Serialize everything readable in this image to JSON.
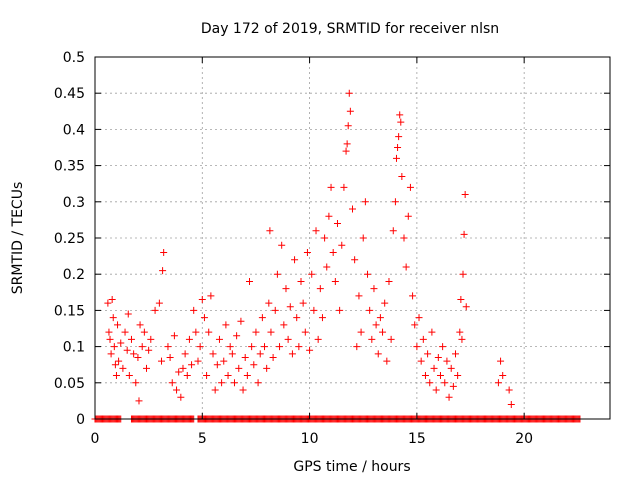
{
  "chart_data": {
    "type": "scatter",
    "title": "Day 172 of 2019, SRMTID for receiver nlsn",
    "xlabel": "GPS time / hours",
    "ylabel": "SRMTID / TECUs",
    "xlim": [
      0,
      24
    ],
    "ylim": [
      0,
      0.5
    ],
    "xticks": [
      "0",
      "5",
      "10",
      "15",
      "20"
    ],
    "xtick_values": [
      0,
      5,
      10,
      15,
      20
    ],
    "yticks": [
      "0",
      "0.05",
      "0.1",
      "0.15",
      "0.2",
      "0.25",
      "0.3",
      "0.35",
      "0.4",
      "0.45",
      "0.5"
    ],
    "ytick_values": [
      0,
      0.05,
      0.1,
      0.15,
      0.2,
      0.25,
      0.3,
      0.35,
      0.4,
      0.45,
      0.5
    ],
    "grid": true,
    "marker": "+",
    "color": "#ff0000",
    "series": [
      {
        "values": [
          [
            0.6,
            0.16
          ],
          [
            0.65,
            0.12
          ],
          [
            0.7,
            0.11
          ],
          [
            0.75,
            0.09
          ],
          [
            0.8,
            0.165
          ],
          [
            0.85,
            0.14
          ],
          [
            0.9,
            0.1
          ],
          [
            0.95,
            0.075
          ],
          [
            1.0,
            0.06
          ],
          [
            1.05,
            0.13
          ],
          [
            1.1,
            0.08
          ],
          [
            1.2,
            0.105
          ],
          [
            1.3,
            0.07
          ],
          [
            1.4,
            0.12
          ],
          [
            1.5,
            0.095
          ],
          [
            1.55,
            0.145
          ],
          [
            1.6,
            0.06
          ],
          [
            1.7,
            0.11
          ],
          [
            1.8,
            0.09
          ],
          [
            1.9,
            0.05
          ],
          [
            2.0,
            0.085
          ],
          [
            2.05,
            0.025
          ],
          [
            2.1,
            0.13
          ],
          [
            2.2,
            0.1
          ],
          [
            2.3,
            0.12
          ],
          [
            2.4,
            0.07
          ],
          [
            2.5,
            0.095
          ],
          [
            2.6,
            0.11
          ],
          [
            2.8,
            0.15
          ],
          [
            3.0,
            0.16
          ],
          [
            3.1,
            0.08
          ],
          [
            3.15,
            0.205
          ],
          [
            3.2,
            0.23
          ],
          [
            3.4,
            0.1
          ],
          [
            3.5,
            0.085
          ],
          [
            3.6,
            0.05
          ],
          [
            3.7,
            0.115
          ],
          [
            3.8,
            0.04
          ],
          [
            3.9,
            0.065
          ],
          [
            4.0,
            0.03
          ],
          [
            4.1,
            0.07
          ],
          [
            4.2,
            0.09
          ],
          [
            4.3,
            0.06
          ],
          [
            4.4,
            0.11
          ],
          [
            4.5,
            0.075
          ],
          [
            4.6,
            0.15
          ],
          [
            4.7,
            0.12
          ],
          [
            4.8,
            0.08
          ],
          [
            4.9,
            0.1
          ],
          [
            5.0,
            0.165
          ],
          [
            5.1,
            0.14
          ],
          [
            5.2,
            0.06
          ],
          [
            5.3,
            0.12
          ],
          [
            5.4,
            0.17
          ],
          [
            5.5,
            0.09
          ],
          [
            5.6,
            0.04
          ],
          [
            5.7,
            0.075
          ],
          [
            5.8,
            0.11
          ],
          [
            5.9,
            0.05
          ],
          [
            6.0,
            0.08
          ],
          [
            6.1,
            0.13
          ],
          [
            6.2,
            0.06
          ],
          [
            6.3,
            0.1
          ],
          [
            6.4,
            0.09
          ],
          [
            6.5,
            0.05
          ],
          [
            6.6,
            0.115
          ],
          [
            6.7,
            0.07
          ],
          [
            6.8,
            0.135
          ],
          [
            6.9,
            0.04
          ],
          [
            7.0,
            0.085
          ],
          [
            7.1,
            0.06
          ],
          [
            7.2,
            0.19
          ],
          [
            7.3,
            0.1
          ],
          [
            7.4,
            0.075
          ],
          [
            7.5,
            0.12
          ],
          [
            7.6,
            0.05
          ],
          [
            7.7,
            0.09
          ],
          [
            7.8,
            0.14
          ],
          [
            7.9,
            0.1
          ],
          [
            8.0,
            0.07
          ],
          [
            8.1,
            0.16
          ],
          [
            8.15,
            0.26
          ],
          [
            8.2,
            0.12
          ],
          [
            8.3,
            0.085
          ],
          [
            8.4,
            0.15
          ],
          [
            8.5,
            0.2
          ],
          [
            8.6,
            0.1
          ],
          [
            8.7,
            0.24
          ],
          [
            8.8,
            0.13
          ],
          [
            8.9,
            0.18
          ],
          [
            9.0,
            0.11
          ],
          [
            9.1,
            0.155
          ],
          [
            9.2,
            0.09
          ],
          [
            9.3,
            0.22
          ],
          [
            9.4,
            0.14
          ],
          [
            9.5,
            0.1
          ],
          [
            9.6,
            0.19
          ],
          [
            9.7,
            0.16
          ],
          [
            9.8,
            0.12
          ],
          [
            9.9,
            0.23
          ],
          [
            10.0,
            0.095
          ],
          [
            10.1,
            0.2
          ],
          [
            10.2,
            0.15
          ],
          [
            10.3,
            0.26
          ],
          [
            10.4,
            0.11
          ],
          [
            10.5,
            0.18
          ],
          [
            10.6,
            0.14
          ],
          [
            10.7,
            0.25
          ],
          [
            10.8,
            0.21
          ],
          [
            10.9,
            0.28
          ],
          [
            11.0,
            0.32
          ],
          [
            11.1,
            0.23
          ],
          [
            11.2,
            0.19
          ],
          [
            11.3,
            0.27
          ],
          [
            11.4,
            0.15
          ],
          [
            11.5,
            0.24
          ],
          [
            11.6,
            0.32
          ],
          [
            11.7,
            0.37
          ],
          [
            11.75,
            0.38
          ],
          [
            11.8,
            0.405
          ],
          [
            11.85,
            0.45
          ],
          [
            11.9,
            0.425
          ],
          [
            12.0,
            0.29
          ],
          [
            12.1,
            0.22
          ],
          [
            12.2,
            0.1
          ],
          [
            12.3,
            0.17
          ],
          [
            12.4,
            0.12
          ],
          [
            12.5,
            0.25
          ],
          [
            12.6,
            0.3
          ],
          [
            12.7,
            0.2
          ],
          [
            12.8,
            0.15
          ],
          [
            12.9,
            0.11
          ],
          [
            13.0,
            0.18
          ],
          [
            13.1,
            0.13
          ],
          [
            13.2,
            0.09
          ],
          [
            13.3,
            0.14
          ],
          [
            13.4,
            0.12
          ],
          [
            13.5,
            0.16
          ],
          [
            13.6,
            0.08
          ],
          [
            13.7,
            0.19
          ],
          [
            13.8,
            0.11
          ],
          [
            13.9,
            0.26
          ],
          [
            14.0,
            0.3
          ],
          [
            14.05,
            0.36
          ],
          [
            14.1,
            0.375
          ],
          [
            14.15,
            0.39
          ],
          [
            14.2,
            0.42
          ],
          [
            14.25,
            0.41
          ],
          [
            14.3,
            0.335
          ],
          [
            14.4,
            0.25
          ],
          [
            14.5,
            0.21
          ],
          [
            14.6,
            0.28
          ],
          [
            14.7,
            0.32
          ],
          [
            14.8,
            0.17
          ],
          [
            14.9,
            0.13
          ],
          [
            15.0,
            0.1
          ],
          [
            15.1,
            0.14
          ],
          [
            15.2,
            0.08
          ],
          [
            15.3,
            0.11
          ],
          [
            15.4,
            0.06
          ],
          [
            15.5,
            0.09
          ],
          [
            15.6,
            0.05
          ],
          [
            15.7,
            0.12
          ],
          [
            15.8,
            0.07
          ],
          [
            15.9,
            0.04
          ],
          [
            16.0,
            0.085
          ],
          [
            16.1,
            0.06
          ],
          [
            16.2,
            0.1
          ],
          [
            16.3,
            0.05
          ],
          [
            16.4,
            0.08
          ],
          [
            16.5,
            0.03
          ],
          [
            16.6,
            0.07
          ],
          [
            16.7,
            0.045
          ],
          [
            16.8,
            0.09
          ],
          [
            16.9,
            0.06
          ],
          [
            17.0,
            0.12
          ],
          [
            17.05,
            0.165
          ],
          [
            17.1,
            0.11
          ],
          [
            17.15,
            0.2
          ],
          [
            17.2,
            0.255
          ],
          [
            17.25,
            0.31
          ],
          [
            17.3,
            0.155
          ],
          [
            18.8,
            0.05
          ],
          [
            18.9,
            0.08
          ],
          [
            19.0,
            0.06
          ],
          [
            19.3,
            0.04
          ],
          [
            19.4,
            0.02
          ]
        ]
      }
    ],
    "zero_band": [
      [
        0.0,
        1.2
      ],
      [
        1.7,
        4.6
      ],
      [
        4.8,
        22.6
      ]
    ]
  }
}
